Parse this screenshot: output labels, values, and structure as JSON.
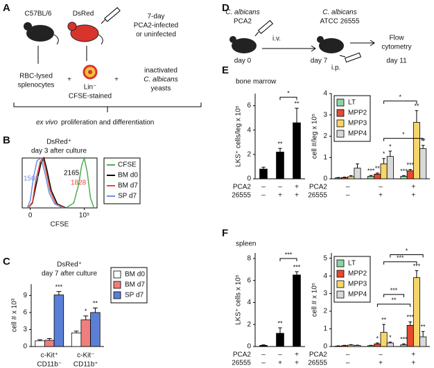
{
  "figure": {
    "panel_labels": [
      "A",
      "B",
      "C",
      "D",
      "E",
      "F"
    ],
    "subtitles": [
      "bone marrow",
      "spleen"
    ]
  },
  "diagram_a": {
    "mouse_1": "C57BL/6",
    "mouse_2": "DsRed",
    "infection": [
      "7-day",
      "PCA2-infected",
      "or uninfected"
    ],
    "cells_1": [
      "RBC-lysed",
      "splenocytes"
    ],
    "plus": [
      "+",
      "+"
    ],
    "cells_2": [
      "Lin⁻",
      "CFSE-stained"
    ],
    "yeast": [
      "inactivated",
      "C. albicans",
      "yeasts"
    ],
    "result_italic": "ex vivo",
    "result": "proliferation and differentiation"
  },
  "diagram_d": {
    "strain_1": [
      "C. albicans",
      "PCA2"
    ],
    "route_1": "i.v.",
    "strain_2": [
      "C. albicans",
      "ATCC 26555"
    ],
    "route_2": "i.p.",
    "readout": [
      "Flow",
      "cytometry"
    ],
    "days": [
      "day 0",
      "day 7",
      "day 11"
    ]
  },
  "chart_data": [
    {
      "type": "line",
      "title": [
        "DsRed⁺",
        "day 3 after culture"
      ],
      "xlabel": "CFSE",
      "xscale": "biexponential",
      "xlim": [
        -1000,
        300000
      ],
      "ylim": [
        0,
        100
      ],
      "xticks": [
        0,
        {
          "value": 100000,
          "label": "10⁵"
        }
      ],
      "series": [
        {
          "name": "CFSE",
          "color": "#4caf50",
          "x": [
            20000,
            40000,
            60000,
            80000,
            100000,
            130000,
            170000,
            230000
          ],
          "values": [
            0,
            10,
            45,
            85,
            100,
            70,
            20,
            0
          ]
        },
        {
          "name": "BM d0",
          "color": "#000000",
          "mfi": "2165",
          "x": [
            -200,
            200,
            700,
            1500,
            2200,
            3000,
            5000,
            9000,
            20000
          ],
          "values": [
            0,
            10,
            50,
            90,
            100,
            80,
            35,
            8,
            0
          ]
        },
        {
          "name": "BM d7",
          "color": "#e8493a",
          "mfi": "1828",
          "x": [
            -200,
            200,
            600,
            1300,
            1900,
            2800,
            4500,
            8000,
            18000
          ],
          "values": [
            0,
            12,
            55,
            92,
            100,
            75,
            33,
            8,
            0
          ]
        },
        {
          "name": "SP d7",
          "color": "#6b8fe0",
          "mfi": "1502",
          "x": [
            -300,
            0,
            300,
            800,
            1500,
            2500,
            4000,
            7000,
            15000
          ],
          "values": [
            0,
            15,
            60,
            95,
            100,
            70,
            30,
            8,
            0
          ]
        }
      ]
    },
    {
      "type": "bar",
      "title": [
        "DsRed⁺",
        "day 7 after culture"
      ],
      "ylabel": "cell # x 10³",
      "ylim": [
        0,
        11
      ],
      "yticks": [
        0,
        3,
        6,
        9
      ],
      "categories": [
        [
          "c-Kit⁺",
          "CD11b⁻"
        ],
        [
          "c-Kit⁻",
          "CD11b⁺"
        ]
      ],
      "series": [
        {
          "name": "BM d0",
          "color": "#ffffff",
          "values": [
            1.0,
            2.4
          ],
          "errors": [
            0.2,
            0.3
          ],
          "annotations": [
            null,
            null
          ]
        },
        {
          "name": "BM d7",
          "color": "#ef7f7f",
          "values": [
            1.1,
            4.7
          ],
          "errors": [
            0.3,
            0.7
          ],
          "annotations": [
            null,
            "*"
          ]
        },
        {
          "name": "SP d7",
          "color": "#5b7fd6",
          "values": [
            9.1,
            6.0
          ],
          "errors": [
            0.6,
            0.8
          ],
          "annotations": [
            "***",
            "**"
          ]
        }
      ]
    },
    {
      "type": "bar",
      "ylabel": "LKS⁺ cells/leg x 10⁵",
      "ylim": [
        0,
        7
      ],
      "yticks": [
        0,
        2,
        4,
        6
      ],
      "conditions": [
        {
          "label": "PCA2",
          "values": [
            "–",
            "–",
            "+"
          ]
        },
        {
          "label": "26555",
          "values": [
            "–",
            "+",
            "+"
          ]
        }
      ],
      "series": [
        {
          "name": "LKS⁺",
          "color": "#000000",
          "values": [
            0.8,
            2.2,
            4.6
          ],
          "errors": [
            0.15,
            0.3,
            1.2
          ],
          "annotations": [
            null,
            "**",
            "**"
          ]
        }
      ],
      "brackets": [
        {
          "label": "*"
        }
      ]
    },
    {
      "type": "bar",
      "ylabel": "cell #/leg x 10⁵",
      "ylim": [
        0,
        4
      ],
      "yticks": [
        0,
        1,
        2,
        3,
        4
      ],
      "conditions": [
        {
          "label": "PCA2",
          "values": [
            "–",
            "–",
            "+"
          ]
        },
        {
          "label": "26555",
          "values": [
            "–",
            "+",
            "+"
          ]
        }
      ],
      "series": [
        {
          "name": "LT",
          "color": "#8dd3a5",
          "values": [
            0.04,
            0.12,
            0.12
          ],
          "errors": [
            0.02,
            0.04,
            0.03
          ],
          "annotations": [
            null,
            "***",
            "***"
          ]
        },
        {
          "name": "MPP2",
          "color": "#e8492e",
          "values": [
            0.06,
            0.22,
            0.38
          ],
          "errors": [
            0.02,
            0.05,
            0.06
          ],
          "annotations": [
            null,
            "**",
            "***"
          ]
        },
        {
          "name": "MPP3",
          "color": "#f6d66b",
          "values": [
            0.1,
            0.7,
            2.65
          ],
          "errors": [
            0.05,
            0.25,
            0.55
          ],
          "annotations": [
            null,
            "*",
            "**"
          ]
        },
        {
          "name": "MPP4",
          "color": "#d9d9d9",
          "values": [
            0.5,
            1.05,
            1.42
          ],
          "errors": [
            0.2,
            0.25,
            0.15
          ],
          "annotations": [
            null,
            "*",
            "**"
          ]
        }
      ],
      "brackets": [
        {
          "label": "*"
        },
        {
          "label": "*"
        }
      ]
    },
    {
      "type": "bar",
      "ylabel": "LKS⁺ cells x 10⁵",
      "ylim": [
        0,
        8.5
      ],
      "yticks": [
        0,
        2,
        4,
        6,
        8
      ],
      "conditions": [
        {
          "label": "PCA2",
          "values": [
            "–",
            "–",
            "+"
          ]
        },
        {
          "label": "26555",
          "values": [
            "–",
            "+",
            "+"
          ]
        }
      ],
      "series": [
        {
          "name": "LKS⁺",
          "color": "#000000",
          "values": [
            0.1,
            1.2,
            6.5
          ],
          "errors": [
            0.05,
            0.5,
            0.3
          ],
          "annotations": [
            null,
            "**",
            "***"
          ]
        }
      ],
      "brackets": [
        {
          "label": "***"
        }
      ]
    },
    {
      "type": "bar",
      "ylabel": "cell # x 10⁵",
      "ylim": [
        0,
        5.3
      ],
      "yticks": [
        0,
        1,
        2,
        3,
        4,
        5
      ],
      "conditions": [
        {
          "label": "PCA2",
          "values": [
            "–",
            "–",
            "+"
          ]
        },
        {
          "label": "26555",
          "values": [
            "–",
            "+",
            "+"
          ]
        }
      ],
      "series": [
        {
          "name": "LT",
          "color": "#8dd3a5",
          "values": [
            0.02,
            0.05,
            0.1
          ],
          "errors": [
            0.02,
            0.02,
            0.05
          ],
          "annotations": [
            null,
            null,
            "***"
          ]
        },
        {
          "name": "MPP2",
          "color": "#e8492e",
          "values": [
            0.05,
            0.15,
            1.2
          ],
          "errors": [
            0.02,
            0.05,
            0.2
          ],
          "annotations": [
            null,
            "*",
            "***"
          ]
        },
        {
          "name": "MPP3",
          "color": "#f6d66b",
          "values": [
            0.08,
            0.8,
            3.9
          ],
          "errors": [
            0.03,
            0.45,
            0.4
          ],
          "annotations": [
            null,
            "**",
            "***"
          ]
        },
        {
          "name": "MPP4",
          "color": "#d9d9d9",
          "values": [
            0.06,
            0.2,
            0.55
          ],
          "errors": [
            0.02,
            0.05,
            0.3
          ],
          "annotations": [
            null,
            "*",
            "**"
          ]
        }
      ],
      "brackets": [
        {
          "label": "**"
        },
        {
          "label": "***"
        },
        {
          "label": "***"
        },
        {
          "label": "*"
        }
      ]
    }
  ]
}
